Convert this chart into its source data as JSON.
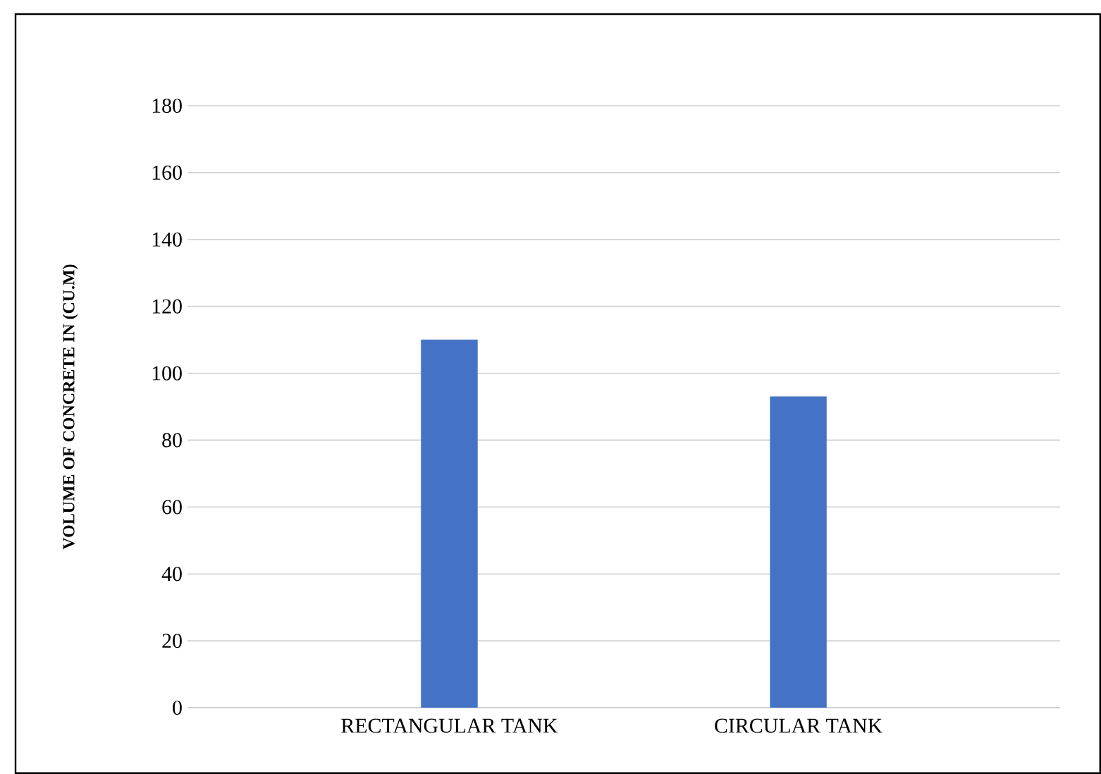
{
  "chart_data": {
    "type": "bar",
    "ylabel": "VOLUME OF CONCRETE IN (CU.M)",
    "categories": [
      "RECTANGULAR TANK",
      "CIRCULAR TANK"
    ],
    "values": [
      110,
      93
    ],
    "color": "#4472c4",
    "ylim": [
      0,
      180
    ],
    "yticks": [
      0,
      20,
      40,
      60,
      80,
      100,
      120,
      140,
      160,
      180
    ],
    "grid": "y"
  }
}
